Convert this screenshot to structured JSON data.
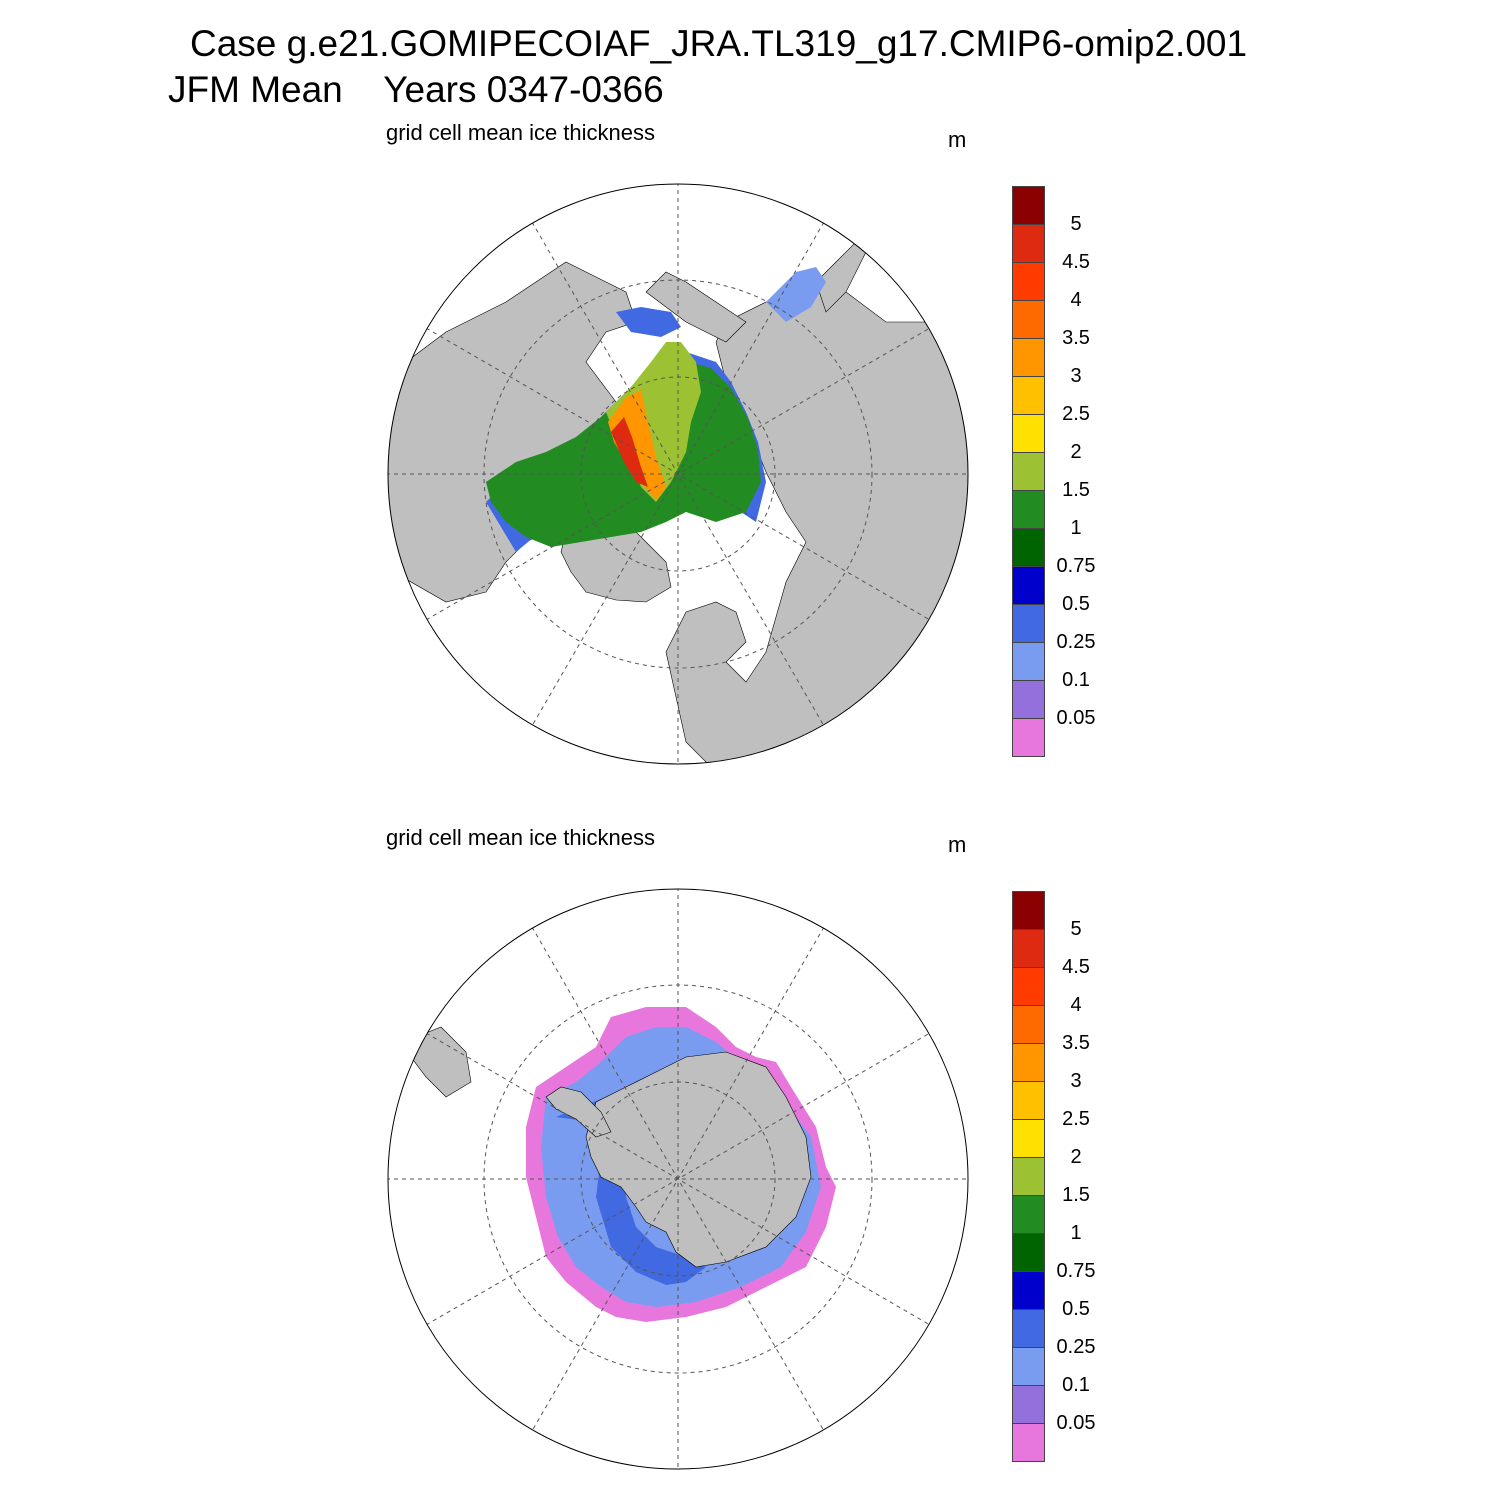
{
  "header": {
    "case_line": "Case g.e21.GOMIPECOIAF_JRA.TL319_g17.CMIP6-omip2.001",
    "season": "JFM Mean",
    "years": "Years 0347-0366"
  },
  "panels": [
    {
      "hemisphere": "north",
      "title": "grid cell mean ice thickness",
      "units": "m"
    },
    {
      "hemisphere": "south",
      "title": "grid cell mean ice thickness",
      "units": "m"
    }
  ],
  "colorbar": {
    "labels": [
      "5",
      "4.5",
      "4",
      "3.5",
      "3",
      "2.5",
      "2",
      "1.5",
      "1",
      "0.75",
      "0.5",
      "0.25",
      "0.1",
      "0.05"
    ],
    "colors": [
      "#8b0000",
      "#dd2a10",
      "#ff3b00",
      "#ff6a00",
      "#ff9600",
      "#ffc000",
      "#ffe000",
      "#9cc234",
      "#228b22",
      "#006400",
      "#0000cd",
      "#4169e1",
      "#7a9cf0",
      "#9370db",
      "#e777dd"
    ]
  },
  "colors": {
    "land": "#bfbfbf",
    "ocean": "#ffffff",
    "grid": "#555555"
  }
}
